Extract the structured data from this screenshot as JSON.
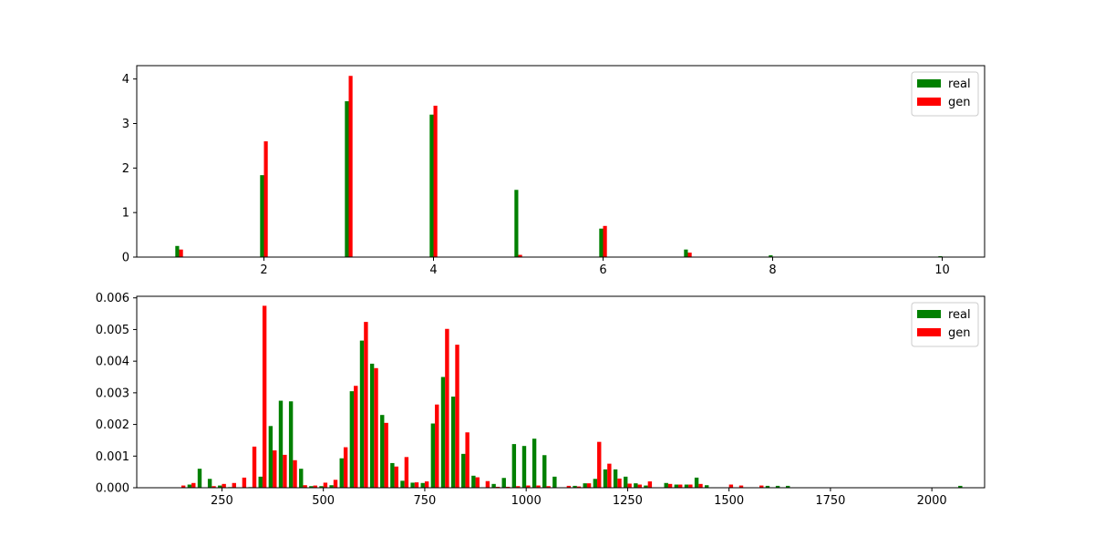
{
  "chart_data": [
    {
      "type": "bar",
      "title": "",
      "xlabel": "",
      "ylabel": "",
      "xlim": [
        0.5,
        10.5
      ],
      "ylim": [
        0,
        4.3
      ],
      "x_ticks": [
        2,
        4,
        6,
        8,
        10
      ],
      "y_ticks": [
        0,
        1,
        2,
        3,
        4
      ],
      "grid": false,
      "legend_position": "top-right",
      "x": [
        1,
        2,
        3,
        4,
        5,
        6,
        7,
        8,
        10
      ],
      "series": [
        {
          "name": "real",
          "color": "#008000",
          "values": [
            0.25,
            1.84,
            3.5,
            3.2,
            1.51,
            0.64,
            0.17,
            0.04,
            0.02
          ]
        },
        {
          "name": "gen",
          "color": "#ff0000",
          "values": [
            0.17,
            2.6,
            4.07,
            3.4,
            0.05,
            0.7,
            0.1,
            0.01,
            0.0
          ]
        }
      ]
    },
    {
      "type": "bar",
      "title": "",
      "xlabel": "",
      "ylabel": "",
      "xlim": [
        40,
        2130
      ],
      "ylim": [
        0,
        0.00605
      ],
      "x_ticks": [
        250,
        500,
        750,
        1000,
        1250,
        1500,
        1750,
        2000
      ],
      "y_ticks": [
        0.0,
        0.001,
        0.002,
        0.003,
        0.004,
        0.005,
        0.006
      ],
      "y_tick_labels": [
        "0.000",
        "0.001",
        "0.002",
        "0.003",
        "0.004",
        "0.005",
        "0.006"
      ],
      "grid": false,
      "legend_position": "top-right",
      "x": [
        150,
        175,
        200,
        225,
        250,
        275,
        300,
        325,
        350,
        375,
        400,
        425,
        450,
        475,
        500,
        525,
        550,
        575,
        600,
        625,
        650,
        675,
        700,
        725,
        750,
        775,
        800,
        825,
        850,
        875,
        900,
        925,
        950,
        975,
        1000,
        1025,
        1050,
        1075,
        1100,
        1125,
        1150,
        1175,
        1200,
        1225,
        1250,
        1275,
        1300,
        1350,
        1375,
        1400,
        1425,
        1450,
        1500,
        1525,
        1575,
        1600,
        1625,
        1650,
        2075
      ],
      "series": [
        {
          "name": "real",
          "color": "#008000",
          "values": [
            0.0,
            0.0001,
            0.0006,
            0.00028,
            7e-05,
            2e-05,
            1e-05,
            2e-05,
            0.00035,
            0.00195,
            0.00275,
            0.00273,
            0.0006,
            5e-05,
            5e-05,
            8e-05,
            0.00093,
            0.00305,
            0.00465,
            0.00392,
            0.0023,
            0.00078,
            0.00022,
            0.00016,
            0.00015,
            0.00203,
            0.0035,
            0.00288,
            0.00107,
            0.00038,
            0.0,
            0.00012,
            0.00031,
            0.00138,
            0.00132,
            0.00155,
            0.00103,
            0.00035,
            0.0,
            6e-05,
            0.00014,
            0.00028,
            0.00058,
            0.00058,
            0.00035,
            0.00014,
            7e-05,
            0.00015,
            0.0001,
            0.0001,
            0.00032,
            8e-05,
            0.0,
            0.0,
            0.0,
            6e-05,
            6e-05,
            6e-05,
            6e-05
          ]
        },
        {
          "name": "gen",
          "color": "#ff0000",
          "values": [
            7e-05,
            0.00015,
            0.0,
            5e-05,
            0.00012,
            0.00015,
            0.00032,
            0.0013,
            0.00575,
            0.00118,
            0.00104,
            0.00087,
            8e-05,
            7e-05,
            0.00016,
            0.00025,
            0.00128,
            0.00322,
            0.00524,
            0.00378,
            0.00205,
            0.00067,
            0.00097,
            0.00017,
            0.0002,
            0.00263,
            0.00502,
            0.00452,
            0.00175,
            0.00033,
            0.00021,
            3e-05,
            3e-05,
            5e-05,
            7e-05,
            7e-05,
            5e-05,
            0.0,
            6e-05,
            4e-05,
            0.00014,
            0.00145,
            0.00076,
            0.00029,
            0.00013,
            0.0001,
            0.0002,
            0.00012,
            0.0001,
            0.0001,
            0.00012,
            0.0,
            0.0001,
            7e-05,
            7e-05,
            0.0,
            0.0,
            0.0,
            0.0
          ]
        }
      ]
    }
  ]
}
